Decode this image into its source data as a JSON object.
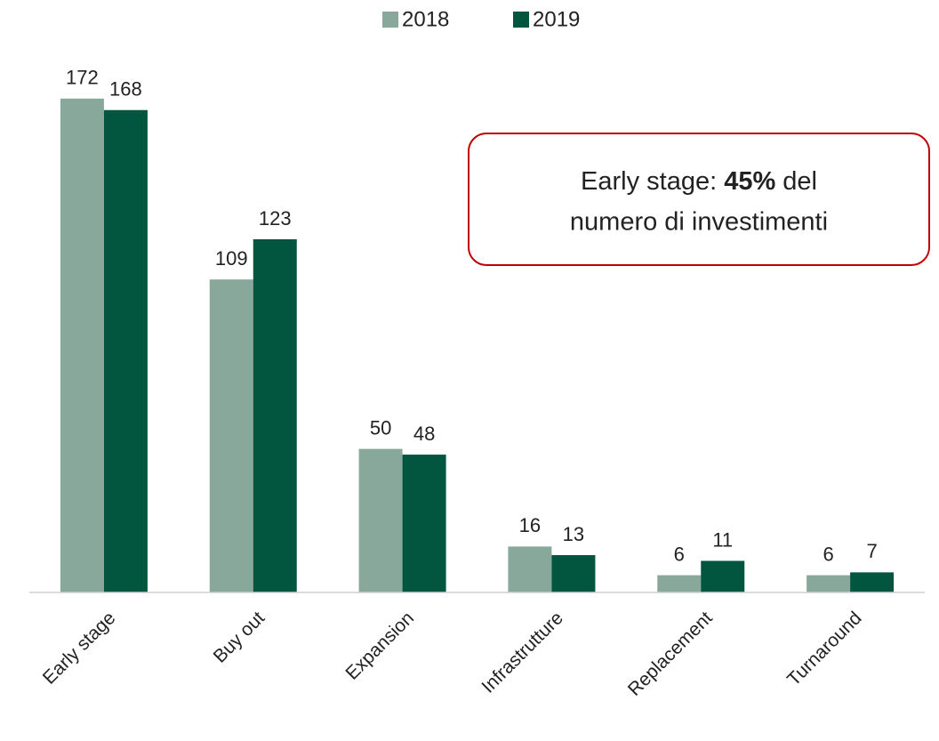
{
  "chart_data": {
    "type": "bar",
    "categories": [
      "Early stage",
      "Buy out",
      "Expansion",
      "Infrastrutture",
      "Replacement",
      "Turnaround"
    ],
    "series": [
      {
        "name": "2018",
        "color": "#88a89b",
        "values": [
          172,
          109,
          50,
          16,
          6,
          6
        ]
      },
      {
        "name": "2019",
        "color": "#02553f",
        "values": [
          168,
          123,
          48,
          13,
          11,
          7
        ]
      }
    ],
    "ylim": [
      0,
      180
    ],
    "legend": "top",
    "annotation": {
      "before": "Early stage:",
      "bold": "45%",
      "after": "del",
      "line2": "numero di investimenti",
      "border_color": "#c00000"
    }
  }
}
